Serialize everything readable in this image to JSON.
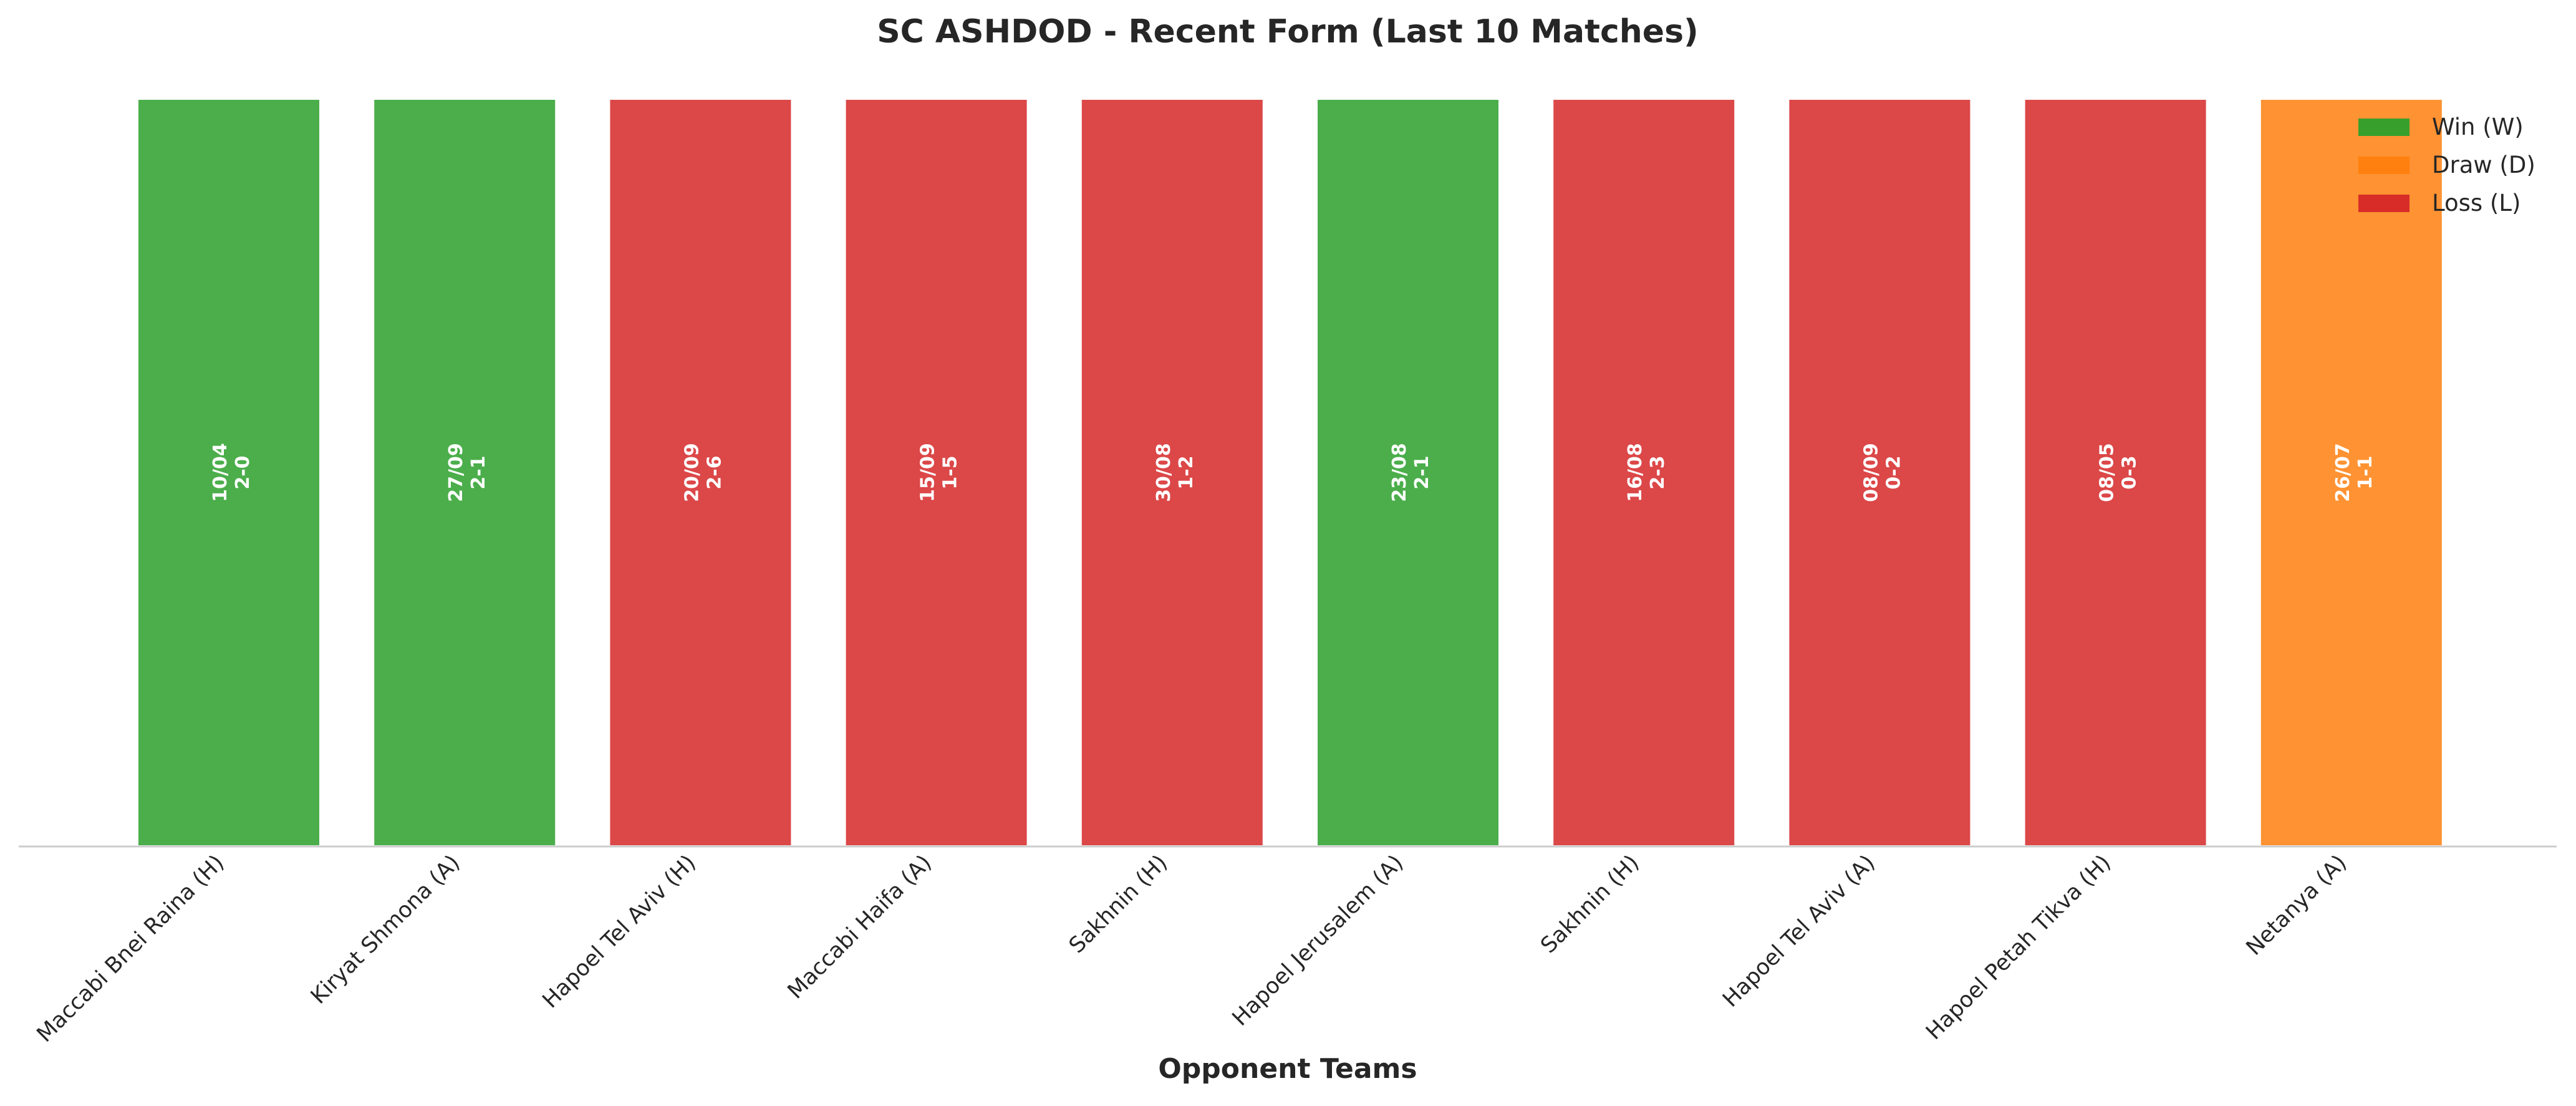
{
  "chart_data": {
    "type": "bar",
    "title": "SC ASHDOD - Recent Form (Last 10 Matches)",
    "xlabel": "Opponent Teams",
    "ylabel": "",
    "grid": false,
    "legend_placement": "top-right",
    "categories": [
      "Maccabi Bnei Raina (H)",
      "Kiryat Shmona (A)",
      "Hapoel Tel Aviv (H)",
      "Maccabi Haifa (A)",
      "Sakhnin (H)",
      "Hapoel Jerusalem (A)",
      "Sakhnin (H)",
      "Hapoel Tel Aviv (A)",
      "Hapoel Petah Tikva (H)",
      "Netanya (A)"
    ],
    "values": [
      1,
      1,
      1,
      1,
      1,
      1,
      1,
      1,
      1,
      1
    ],
    "results": [
      "W",
      "W",
      "L",
      "L",
      "L",
      "W",
      "L",
      "L",
      "L",
      "D"
    ],
    "dates": [
      "10/04",
      "27/09",
      "20/09",
      "15/09",
      "30/08",
      "23/08",
      "16/08",
      "08/09",
      "08/05",
      "26/07"
    ],
    "scores": [
      "2-0",
      "2-1",
      "2-6",
      "1-5",
      "1-2",
      "2-1",
      "2-3",
      "0-2",
      "0-3",
      "1-1"
    ],
    "legend": [
      {
        "key": "W",
        "label": "Win (W)",
        "color": "#2ca02c"
      },
      {
        "key": "D",
        "label": "Draw (D)",
        "color": "#ff7f0e"
      },
      {
        "key": "L",
        "label": "Loss (L)",
        "color": "#d62728"
      }
    ]
  }
}
